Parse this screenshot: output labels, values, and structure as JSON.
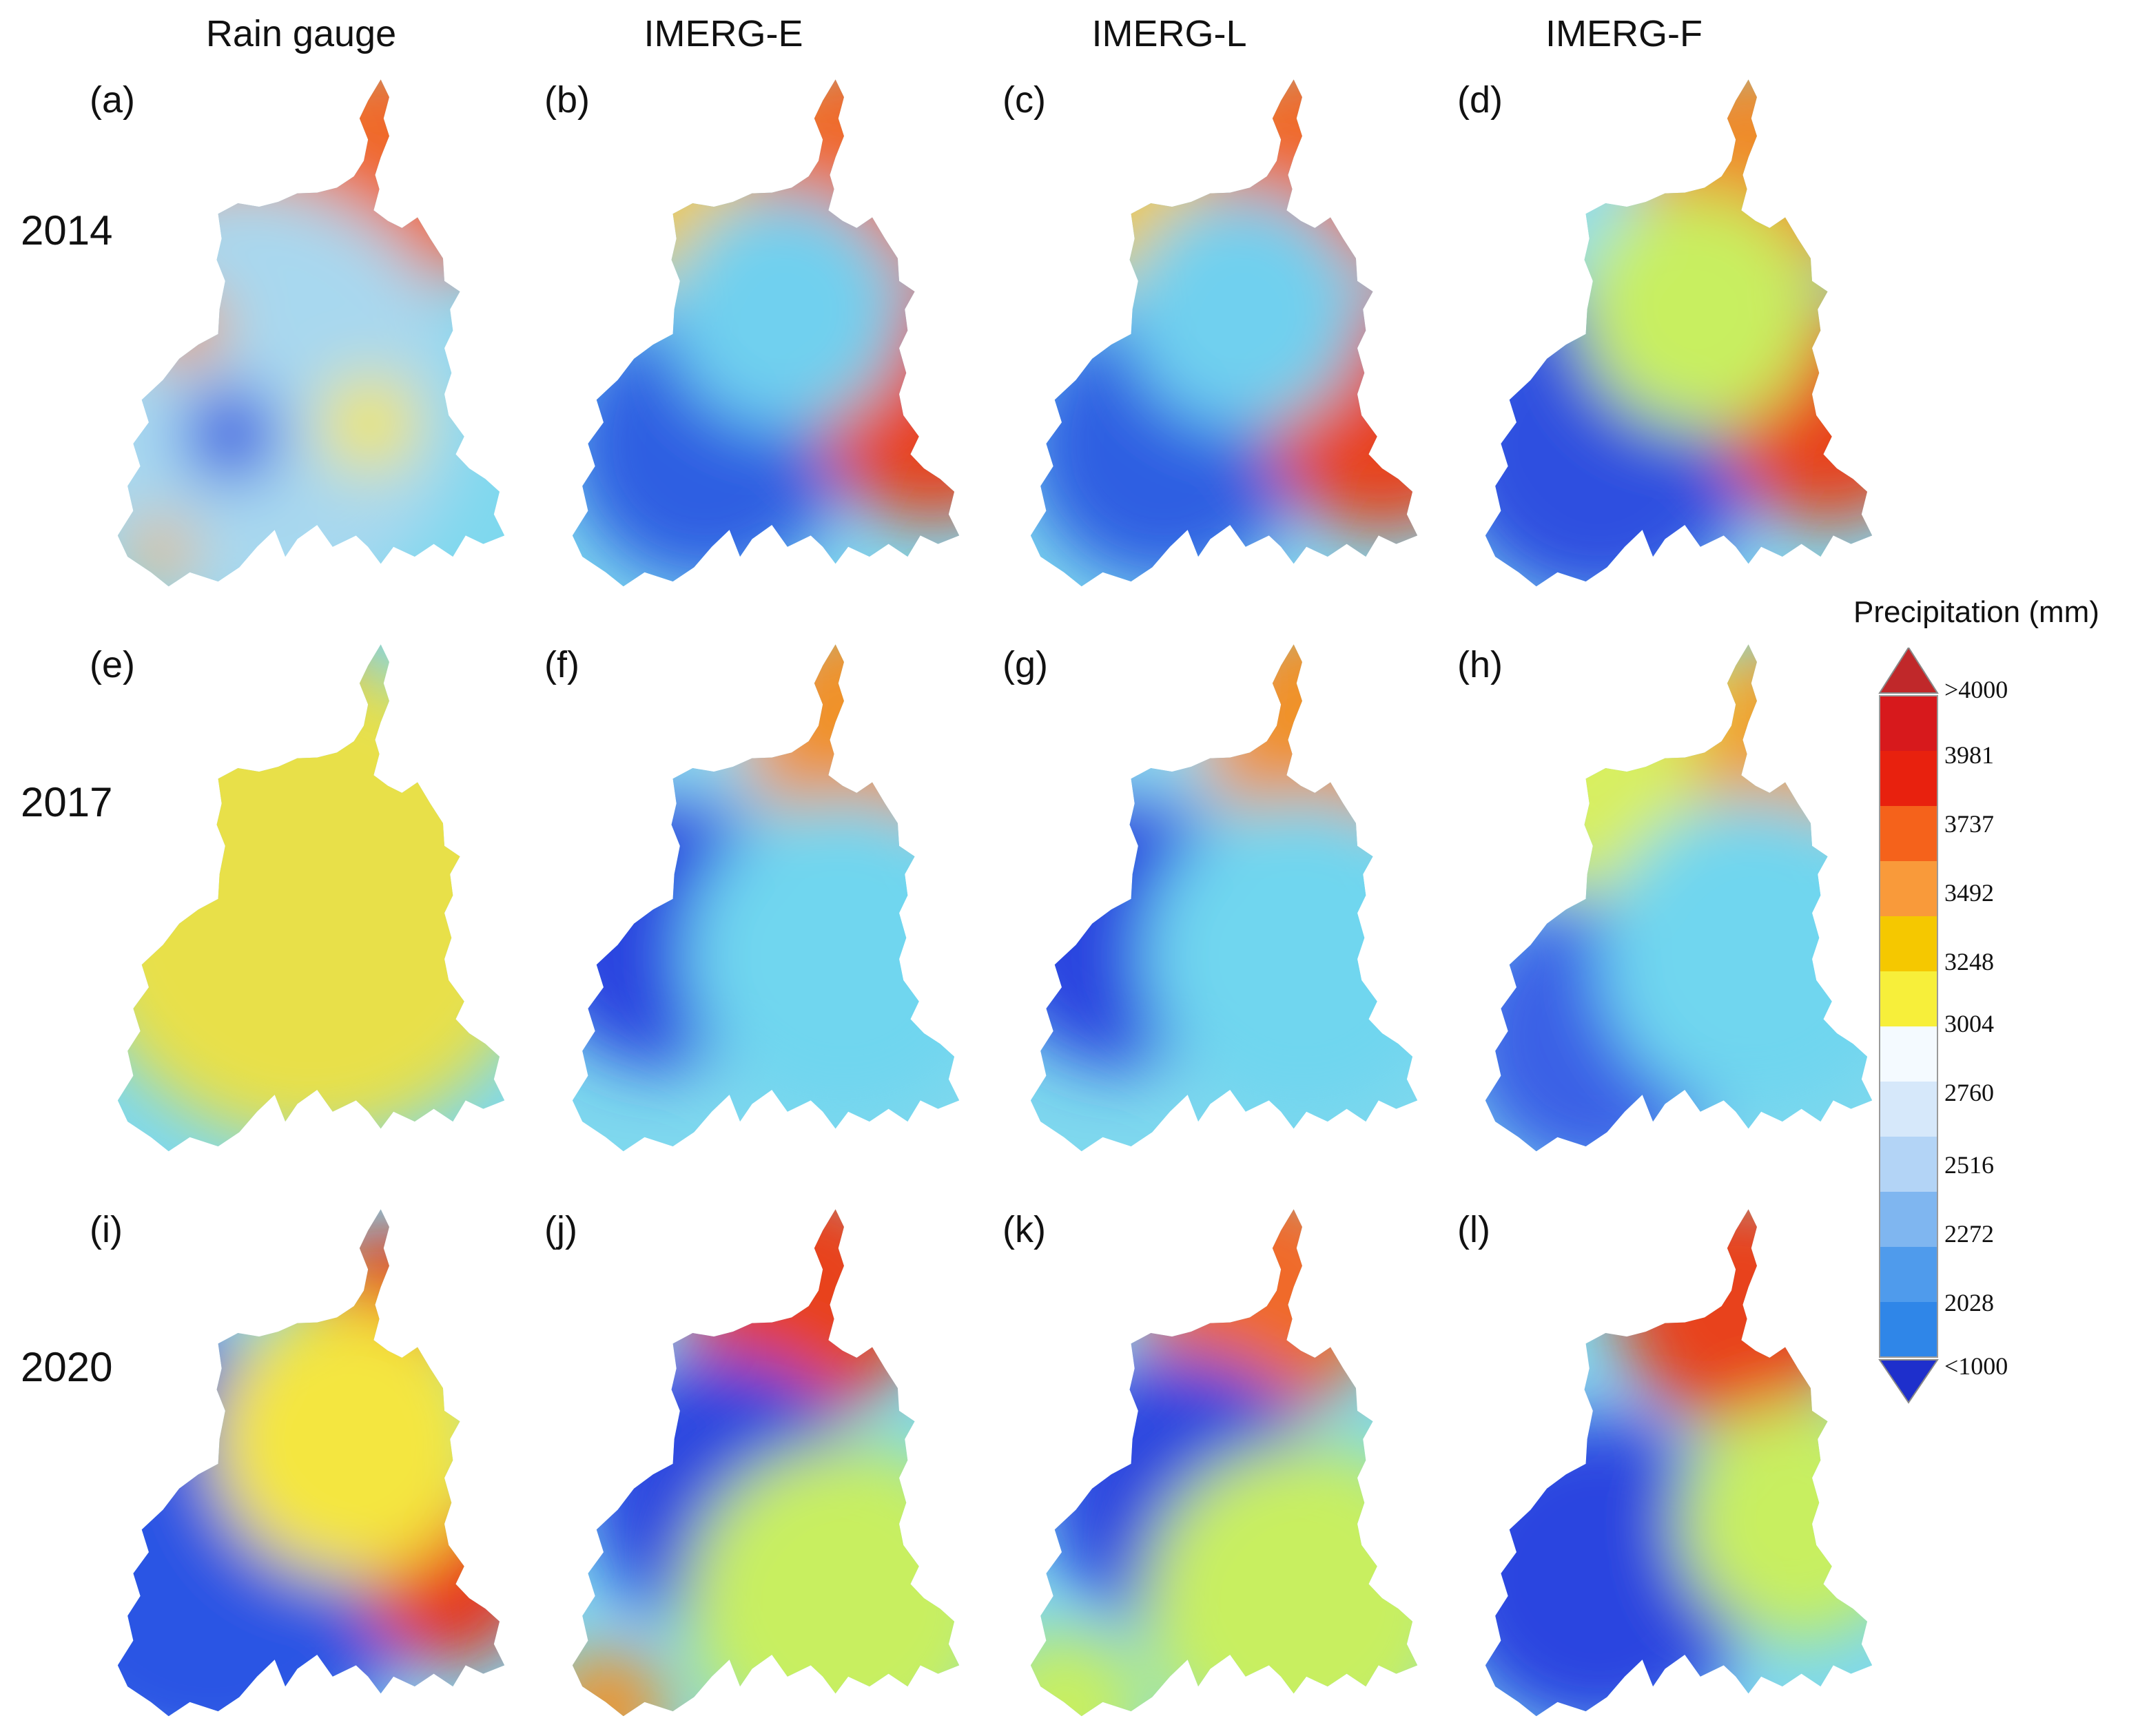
{
  "columns": [
    "Rain gauge",
    "IMERG-E",
    "IMERG-L",
    "IMERG-F"
  ],
  "rows": [
    "2014",
    "2017",
    "2020"
  ],
  "panel_labels": [
    [
      "(a)",
      "(b)",
      "(c)",
      "(d)"
    ],
    [
      "(e)",
      "(f)",
      "(g)",
      "(h)"
    ],
    [
      "(i)",
      "(j)",
      "(k)",
      "(l)"
    ]
  ],
  "legend": {
    "title": "Precipitation (mm)",
    "ticks": [
      ">4000",
      "3981",
      "3737",
      "3492",
      "3248",
      "3004",
      "2760",
      "2516",
      "2272",
      "2028",
      "<1000"
    ],
    "colors": [
      "#d7191c",
      "#e8210e",
      "#f5621b",
      "#f99a3a",
      "#f5c800",
      "#f7ef3a",
      "#f4faff",
      "#d6e8fa",
      "#b3d4f6",
      "#7fb6f0",
      "#4f9bec",
      "#2f86e8"
    ],
    "arrow_top_color": "#c0282a",
    "arrow_bottom_color": "#1e2fcc"
  },
  "fields": [
    [
      [
        [
          "#ee8a2c",
          0.35,
          0.22,
          0.4
        ],
        [
          "#f0692c",
          0.78,
          0.18,
          0.3
        ],
        [
          "#a8d8ef",
          0.35,
          0.62,
          0.55
        ],
        [
          "#2a4fe0",
          0.3,
          0.68,
          0.12
        ],
        [
          "#f0922e",
          0.18,
          0.48,
          0.1
        ],
        [
          "#f4e640",
          0.65,
          0.66,
          0.12
        ],
        [
          "#f0b030",
          0.12,
          0.9,
          0.08
        ]
      ],
      [
        [
          "#f2c93a",
          0.35,
          0.2,
          0.3
        ],
        [
          "#f06a2a",
          0.75,
          0.18,
          0.3
        ],
        [
          "#2f5fe2",
          0.35,
          0.7,
          0.35
        ],
        [
          "#e8431f",
          0.92,
          0.62,
          0.3
        ],
        [
          "#6fd0ef",
          0.55,
          0.45,
          0.3
        ]
      ],
      [
        [
          "#f2c93a",
          0.35,
          0.2,
          0.3
        ],
        [
          "#f06a2a",
          0.75,
          0.18,
          0.3
        ],
        [
          "#2f5fe2",
          0.35,
          0.7,
          0.35
        ],
        [
          "#e8431f",
          0.9,
          0.64,
          0.3
        ],
        [
          "#6fd0ef",
          0.55,
          0.45,
          0.3
        ]
      ],
      [
        [
          "#8fdcef",
          0.25,
          0.25,
          0.3
        ],
        [
          "#ef8a2a",
          0.7,
          0.2,
          0.3
        ],
        [
          "#2f4fe0",
          0.3,
          0.7,
          0.4
        ],
        [
          "#e8431f",
          0.88,
          0.64,
          0.28
        ],
        [
          "#c8ef60",
          0.55,
          0.45,
          0.3
        ]
      ]
    ],
    [
      [
        [
          "#f0402a",
          0.35,
          0.22,
          0.35
        ],
        [
          "#2a3fe0",
          0.55,
          0.35,
          0.14
        ],
        [
          "#2a3fe0",
          0.5,
          0.7,
          0.14
        ],
        [
          "#f0922e",
          0.75,
          0.58,
          0.12
        ],
        [
          "#f0922e",
          0.15,
          0.48,
          0.1
        ],
        [
          "#e8e04a",
          0.5,
          0.5,
          0.6
        ]
      ],
      [
        [
          "#8fdcef",
          0.4,
          0.25,
          0.3
        ],
        [
          "#f0922a",
          0.75,
          0.18,
          0.3
        ],
        [
          "#2a45e0",
          0.25,
          0.55,
          0.35
        ],
        [
          "#6fd6ef",
          0.7,
          0.6,
          0.4
        ]
      ],
      [
        [
          "#8fdcef",
          0.4,
          0.25,
          0.3
        ],
        [
          "#f0922a",
          0.75,
          0.18,
          0.3
        ],
        [
          "#2a45e0",
          0.25,
          0.55,
          0.35
        ],
        [
          "#6fd6ef",
          0.7,
          0.6,
          0.4
        ]
      ],
      [
        [
          "#d8ef60",
          0.4,
          0.25,
          0.35
        ],
        [
          "#f0a030",
          0.78,
          0.2,
          0.25
        ],
        [
          "#3a60e6",
          0.3,
          0.75,
          0.35
        ],
        [
          "#6fd6ef",
          0.7,
          0.6,
          0.4
        ]
      ]
    ],
    [
      [
        [
          "#2a55e4",
          0.25,
          0.65,
          0.55
        ],
        [
          "#e8321c",
          0.7,
          0.2,
          0.2
        ],
        [
          "#e8321c",
          0.85,
          0.7,
          0.22
        ],
        [
          "#f4e640",
          0.6,
          0.45,
          0.35
        ]
      ],
      [
        [
          "#e8431f",
          0.6,
          0.18,
          0.3
        ],
        [
          "#2a45e0",
          0.4,
          0.55,
          0.35
        ],
        [
          "#f0922a",
          0.1,
          0.95,
          0.15
        ],
        [
          "#c8ef60",
          0.7,
          0.75,
          0.4
        ]
      ],
      [
        [
          "#f06a2a",
          0.6,
          0.18,
          0.3
        ],
        [
          "#2a45e0",
          0.4,
          0.55,
          0.35
        ],
        [
          "#c8ef60",
          0.1,
          0.95,
          0.2
        ],
        [
          "#c8ef60",
          0.7,
          0.75,
          0.4
        ]
      ],
      [
        [
          "#e8431f",
          0.65,
          0.2,
          0.3
        ],
        [
          "#2a45e0",
          0.3,
          0.7,
          0.4
        ],
        [
          "#c8ef60",
          0.8,
          0.6,
          0.3
        ]
      ]
    ]
  ]
}
